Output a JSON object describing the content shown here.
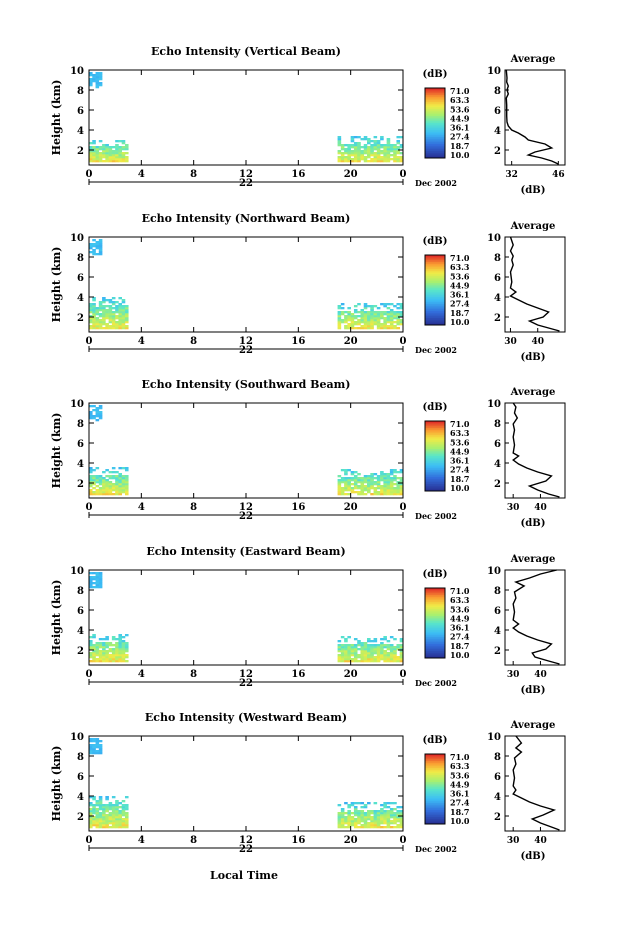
{
  "figure": {
    "time_axis_label": "Local Time",
    "date_label": "Dec 2002",
    "day_label": "22"
  },
  "chart_data": [
    {
      "type": "heatmap",
      "title": "Echo Intensity (Vertical Beam)",
      "ylabel": "Height (km)",
      "xlabel": "Local Time",
      "x_ticks": [
        "0",
        "4",
        "8",
        "12",
        "16",
        "20",
        "0"
      ],
      "xlim": [
        0,
        24
      ],
      "y_ticks": [
        "2",
        "4",
        "6",
        "8",
        "10"
      ],
      "ylim": [
        0.5,
        10
      ],
      "colorbar": {
        "label": "(dB)",
        "ticks": [
          "71.0",
          "63.3",
          "53.6",
          "44.9",
          "36.1",
          "27.4",
          "18.7",
          "10.0"
        ],
        "range": [
          10,
          71
        ]
      },
      "echo_regions": [
        {
          "t0": 0,
          "t1": 3,
          "h0": 0.8,
          "h1": 3.0,
          "level": "mid"
        },
        {
          "t0": 0,
          "t1": 1,
          "h0": 8.2,
          "h1": 9.6,
          "level": "low"
        },
        {
          "t0": 19,
          "t1": 24,
          "h0": 0.8,
          "h1": 3.3,
          "level": "mid"
        }
      ],
      "average": {
        "title": "Average",
        "xlabel": "(dB)",
        "x_ticks": [
          "32",
          "46"
        ],
        "xlim": [
          30,
          48
        ],
        "y_ticks": [
          "2",
          "4",
          "6",
          "8",
          "10"
        ],
        "profile": [
          [
            0.6,
            46
          ],
          [
            0.9,
            44
          ],
          [
            1.2,
            41
          ],
          [
            1.5,
            37
          ],
          [
            1.8,
            39
          ],
          [
            2.2,
            44
          ],
          [
            2.6,
            42
          ],
          [
            3.0,
            37
          ],
          [
            3.3,
            36
          ],
          [
            3.7,
            34
          ],
          [
            4.0,
            32
          ],
          [
            4.4,
            31
          ],
          [
            4.8,
            30.6
          ],
          [
            5.4,
            30.5
          ],
          [
            6.5,
            30.5
          ],
          [
            7.2,
            30.4
          ],
          [
            7.6,
            31
          ],
          [
            8.0,
            30.6
          ],
          [
            8.4,
            31
          ],
          [
            8.8,
            30.5
          ],
          [
            9.2,
            30.6
          ],
          [
            10,
            30.4
          ]
        ]
      }
    },
    {
      "type": "heatmap",
      "title": "Echo Intensity (Northward Beam)",
      "ylabel": "Height (km)",
      "xlabel": "Local Time",
      "x_ticks": [
        "0",
        "4",
        "8",
        "12",
        "16",
        "20",
        "0"
      ],
      "xlim": [
        0,
        24
      ],
      "y_ticks": [
        "2",
        "4",
        "6",
        "8",
        "10"
      ],
      "ylim": [
        0.5,
        10
      ],
      "colorbar": {
        "label": "(dB)",
        "ticks": [
          "71.0",
          "63.3",
          "53.6",
          "44.9",
          "36.1",
          "27.4",
          "18.7",
          "10.0"
        ],
        "range": [
          10,
          71
        ]
      },
      "echo_regions": [
        {
          "t0": 0,
          "t1": 3,
          "h0": 0.8,
          "h1": 4.0,
          "level": "mid"
        },
        {
          "t0": 0,
          "t1": 1,
          "h0": 8.2,
          "h1": 9.6,
          "level": "low"
        },
        {
          "t0": 19,
          "t1": 24,
          "h0": 0.8,
          "h1": 3.3,
          "level": "mid"
        }
      ],
      "average": {
        "title": "Average",
        "xlabel": "(dB)",
        "x_ticks": [
          "30",
          "40"
        ],
        "xlim": [
          28,
          50
        ],
        "y_ticks": [
          "2",
          "4",
          "6",
          "8",
          "10"
        ],
        "profile": [
          [
            0.6,
            48
          ],
          [
            0.9,
            44
          ],
          [
            1.2,
            40
          ],
          [
            1.6,
            37
          ],
          [
            2.0,
            42
          ],
          [
            2.5,
            44
          ],
          [
            2.9,
            40
          ],
          [
            3.3,
            36
          ],
          [
            3.7,
            33
          ],
          [
            4.1,
            30
          ],
          [
            4.5,
            32
          ],
          [
            4.9,
            30
          ],
          [
            5.5,
            30.5
          ],
          [
            6.5,
            30
          ],
          [
            7.2,
            31
          ],
          [
            7.7,
            30.5
          ],
          [
            8.1,
            31
          ],
          [
            8.6,
            30
          ],
          [
            9.2,
            31
          ],
          [
            10,
            30
          ]
        ]
      }
    },
    {
      "type": "heatmap",
      "title": "Echo Intensity (Southward Beam)",
      "ylabel": "Height (km)",
      "xlabel": "Local Time",
      "x_ticks": [
        "0",
        "4",
        "8",
        "12",
        "16",
        "20",
        "0"
      ],
      "xlim": [
        0,
        24
      ],
      "y_ticks": [
        "2",
        "4",
        "6",
        "8",
        "10"
      ],
      "ylim": [
        0.5,
        10
      ],
      "colorbar": {
        "label": "(dB)",
        "ticks": [
          "71.0",
          "63.3",
          "53.6",
          "44.9",
          "36.1",
          "27.4",
          "18.7",
          "10.0"
        ],
        "range": [
          10,
          71
        ]
      },
      "echo_regions": [
        {
          "t0": 0,
          "t1": 3,
          "h0": 0.8,
          "h1": 3.5,
          "level": "mid"
        },
        {
          "t0": 0,
          "t1": 1,
          "h0": 8.2,
          "h1": 9.6,
          "level": "low"
        },
        {
          "t0": 19,
          "t1": 24,
          "h0": 0.8,
          "h1": 3.3,
          "level": "mid"
        }
      ],
      "average": {
        "title": "Average",
        "xlabel": "(dB)",
        "x_ticks": [
          "30",
          "40"
        ],
        "xlim": [
          27,
          49
        ],
        "y_ticks": [
          "2",
          "4",
          "6",
          "8",
          "10"
        ],
        "profile": [
          [
            0.6,
            47
          ],
          [
            0.9,
            43
          ],
          [
            1.3,
            39
          ],
          [
            1.7,
            36
          ],
          [
            2.2,
            42
          ],
          [
            2.7,
            44
          ],
          [
            3.1,
            39
          ],
          [
            3.5,
            35
          ],
          [
            3.9,
            32
          ],
          [
            4.3,
            30
          ],
          [
            4.7,
            32
          ],
          [
            5.0,
            30
          ],
          [
            5.8,
            30.5
          ],
          [
            6.6,
            30
          ],
          [
            7.3,
            30.5
          ],
          [
            7.9,
            30
          ],
          [
            8.5,
            31.5
          ],
          [
            9.0,
            30.5
          ],
          [
            9.6,
            31
          ],
          [
            10,
            30
          ]
        ]
      }
    },
    {
      "type": "heatmap",
      "title": "Echo Intensity (Eastward Beam)",
      "ylabel": "Height (km)",
      "xlabel": "Local Time",
      "x_ticks": [
        "0",
        "4",
        "8",
        "12",
        "16",
        "20",
        "0"
      ],
      "xlim": [
        0,
        24
      ],
      "y_ticks": [
        "2",
        "4",
        "6",
        "8",
        "10"
      ],
      "ylim": [
        0.5,
        10
      ],
      "colorbar": {
        "label": "(dB)",
        "ticks": [
          "71.0",
          "63.3",
          "53.6",
          "44.9",
          "36.1",
          "27.4",
          "18.7",
          "10.0"
        ],
        "range": [
          10,
          71
        ]
      },
      "echo_regions": [
        {
          "t0": 0,
          "t1": 3,
          "h0": 0.8,
          "h1": 3.5,
          "level": "mid"
        },
        {
          "t0": 0,
          "t1": 1,
          "h0": 8.2,
          "h1": 9.6,
          "level": "low"
        },
        {
          "t0": 19,
          "t1": 24,
          "h0": 0.8,
          "h1": 3.3,
          "level": "mid"
        }
      ],
      "average": {
        "title": "Average",
        "xlabel": "(dB)",
        "x_ticks": [
          "30",
          "40"
        ],
        "xlim": [
          27,
          49
        ],
        "y_ticks": [
          "2",
          "4",
          "6",
          "8",
          "10"
        ],
        "profile": [
          [
            0.6,
            47
          ],
          [
            0.9,
            43
          ],
          [
            1.3,
            38
          ],
          [
            1.7,
            37
          ],
          [
            2.1,
            42
          ],
          [
            2.6,
            44
          ],
          [
            3.0,
            39
          ],
          [
            3.4,
            35
          ],
          [
            3.8,
            32
          ],
          [
            4.2,
            30
          ],
          [
            4.6,
            32
          ],
          [
            5.0,
            30
          ],
          [
            5.8,
            30.5
          ],
          [
            6.6,
            30
          ],
          [
            7.2,
            31
          ],
          [
            7.8,
            30.5
          ],
          [
            8.4,
            34
          ],
          [
            8.8,
            31
          ],
          [
            9.2,
            36
          ],
          [
            9.6,
            40
          ],
          [
            10,
            46
          ]
        ]
      }
    },
    {
      "type": "heatmap",
      "title": "Echo Intensity (Westward Beam)",
      "ylabel": "Height (km)",
      "xlabel": "Local Time",
      "x_ticks": [
        "0",
        "4",
        "8",
        "12",
        "16",
        "20",
        "0"
      ],
      "xlim": [
        0,
        24
      ],
      "y_ticks": [
        "2",
        "4",
        "6",
        "8",
        "10"
      ],
      "ylim": [
        0.5,
        10
      ],
      "colorbar": {
        "label": "(dB)",
        "ticks": [
          "71.0",
          "63.3",
          "53.6",
          "44.9",
          "36.1",
          "27.4",
          "18.7",
          "10.0"
        ],
        "range": [
          10,
          71
        ]
      },
      "echo_regions": [
        {
          "t0": 0,
          "t1": 3,
          "h0": 0.8,
          "h1": 4.0,
          "level": "mid"
        },
        {
          "t0": 0,
          "t1": 1,
          "h0": 8.2,
          "h1": 9.6,
          "level": "low"
        },
        {
          "t0": 19,
          "t1": 24,
          "h0": 0.8,
          "h1": 3.3,
          "level": "mid"
        }
      ],
      "average": {
        "title": "Average",
        "xlabel": "(dB)",
        "x_ticks": [
          "30",
          "40"
        ],
        "xlim": [
          27,
          49
        ],
        "y_ticks": [
          "2",
          "4",
          "6",
          "8",
          "10"
        ],
        "profile": [
          [
            0.6,
            47
          ],
          [
            0.9,
            44
          ],
          [
            1.3,
            40
          ],
          [
            1.7,
            37
          ],
          [
            2.1,
            41
          ],
          [
            2.6,
            45
          ],
          [
            3.0,
            40
          ],
          [
            3.4,
            36
          ],
          [
            3.8,
            33
          ],
          [
            4.2,
            30
          ],
          [
            4.6,
            31
          ],
          [
            5.0,
            30
          ],
          [
            5.8,
            30.5
          ],
          [
            6.6,
            30
          ],
          [
            7.2,
            31
          ],
          [
            7.8,
            30.5
          ],
          [
            8.4,
            33
          ],
          [
            8.8,
            31
          ],
          [
            9.3,
            33
          ],
          [
            10,
            31
          ]
        ]
      }
    }
  ]
}
